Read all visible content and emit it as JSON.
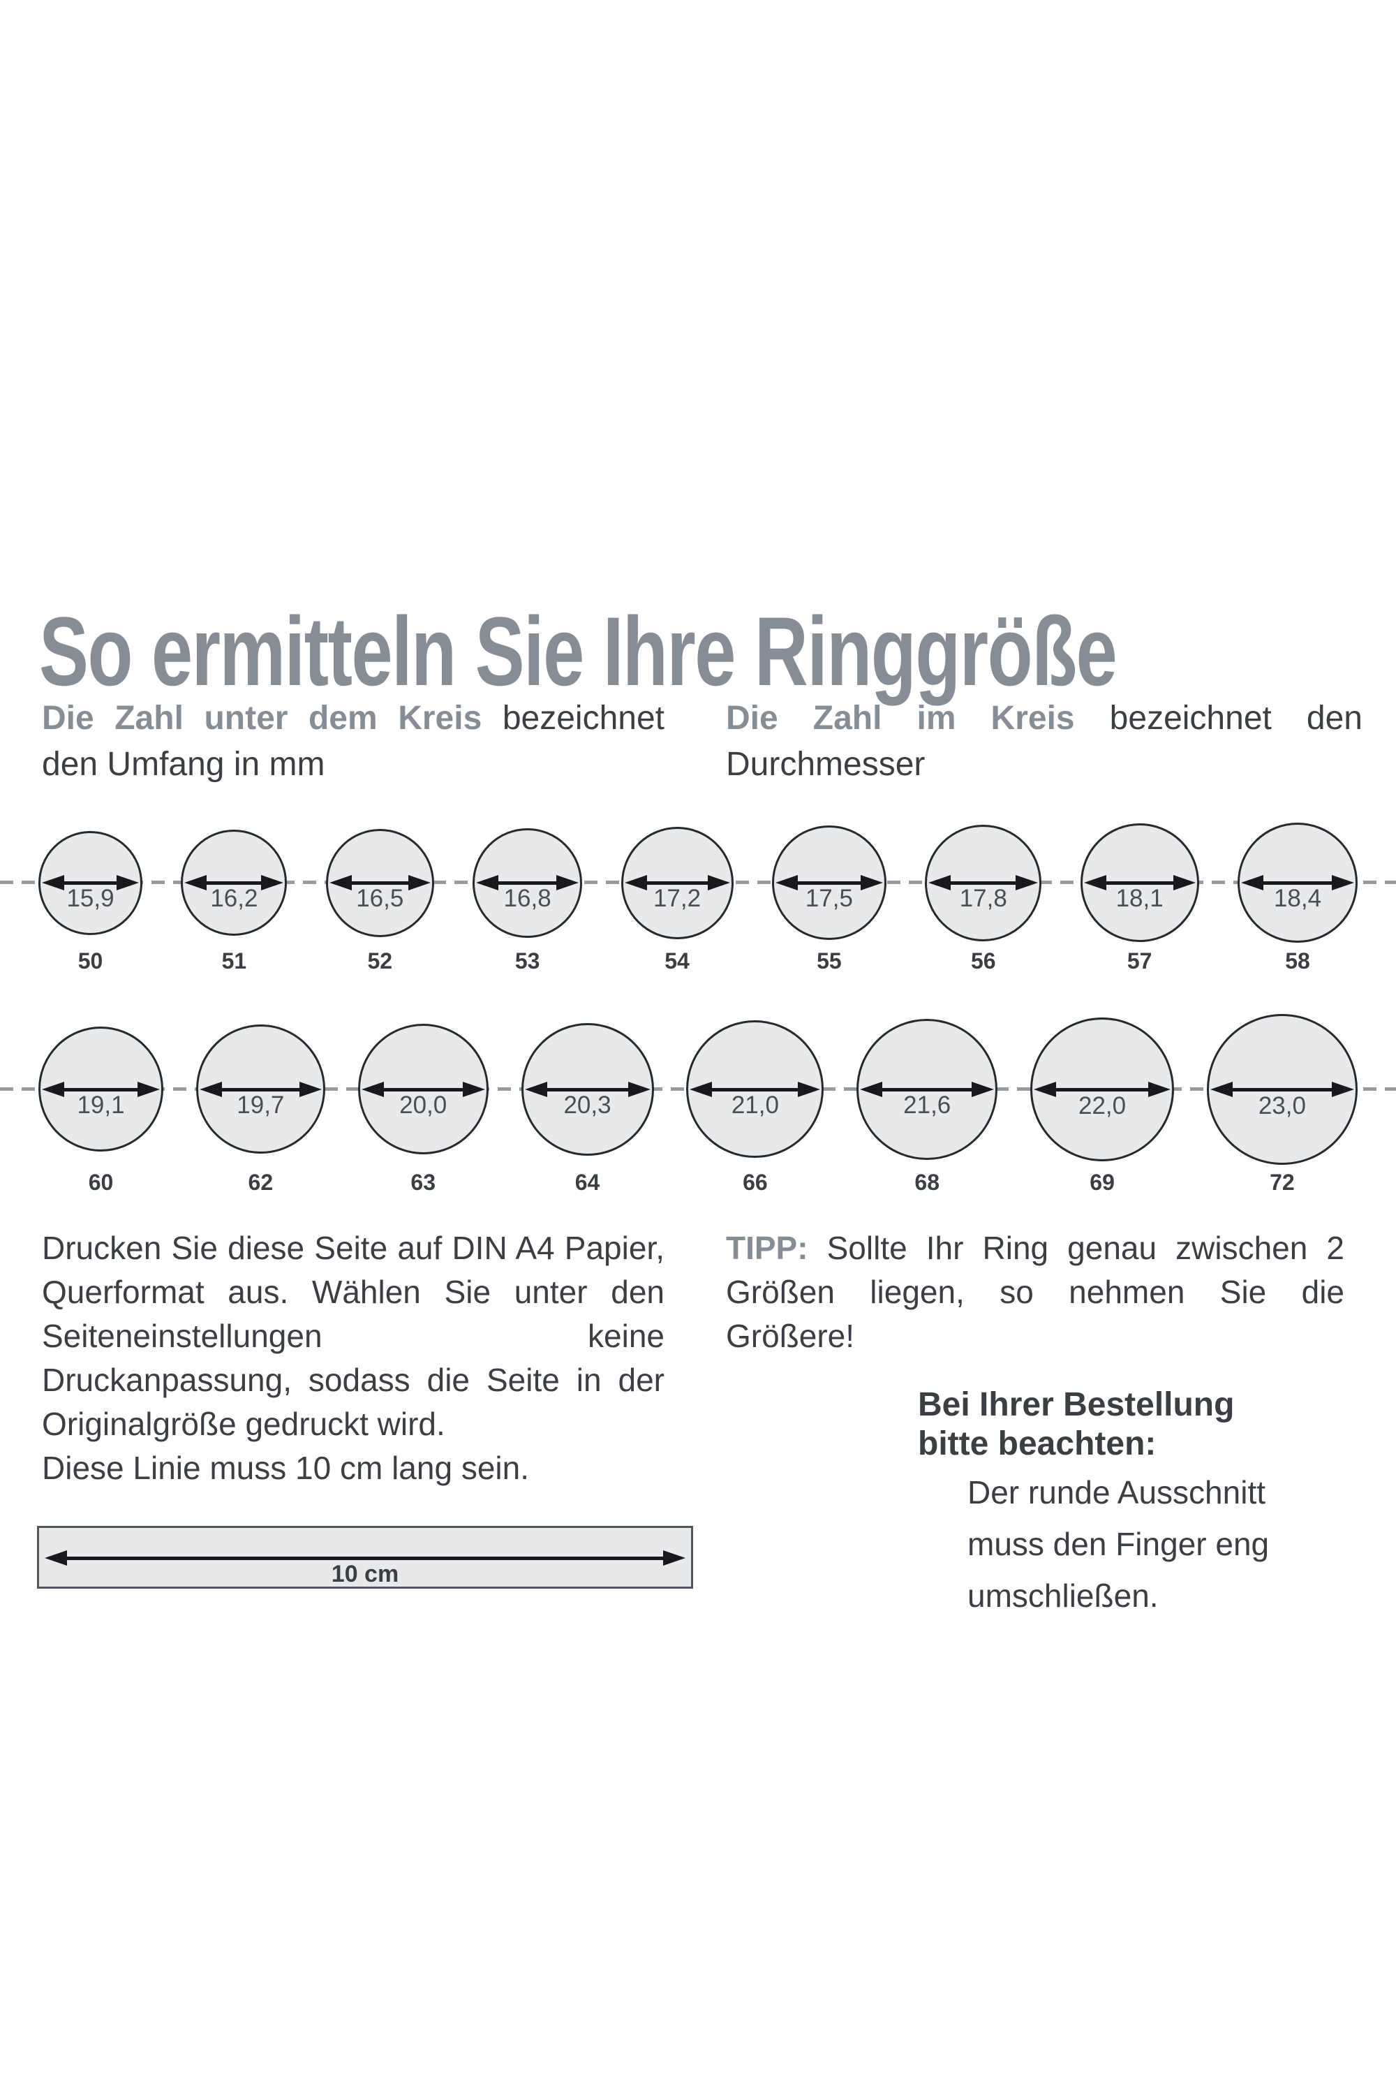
{
  "title": "So ermitteln Sie Ihre Ringgröße",
  "intro_left": {
    "bold": "Die Zahl unter dem Kreis",
    "rest": " bezeichnet den Umfang in mm"
  },
  "intro_right": {
    "bold": "Die Zahl im Kreis",
    "rest": " bezeichnet den Durchmesser"
  },
  "rows": [
    {
      "rings": [
        {
          "diameter_mm": "15,9",
          "size": "50"
        },
        {
          "diameter_mm": "16,2",
          "size": "51"
        },
        {
          "diameter_mm": "16,5",
          "size": "52"
        },
        {
          "diameter_mm": "16,8",
          "size": "53"
        },
        {
          "diameter_mm": "17,2",
          "size": "54"
        },
        {
          "diameter_mm": "17,5",
          "size": "55"
        },
        {
          "diameter_mm": "17,8",
          "size": "56"
        },
        {
          "diameter_mm": "18,1",
          "size": "57"
        },
        {
          "diameter_mm": "18,4",
          "size": "58"
        }
      ]
    },
    {
      "rings": [
        {
          "diameter_mm": "19,1",
          "size": "60"
        },
        {
          "diameter_mm": "19,7",
          "size": "62"
        },
        {
          "diameter_mm": "20,0",
          "size": "63"
        },
        {
          "diameter_mm": "20,3",
          "size": "64"
        },
        {
          "diameter_mm": "21,0",
          "size": "66"
        },
        {
          "diameter_mm": "21,6",
          "size": "68"
        },
        {
          "diameter_mm": "22,0",
          "size": "69"
        },
        {
          "diameter_mm": "23,0",
          "size": "72"
        }
      ]
    }
  ],
  "print_note": "Drucken Sie diese Seite auf DIN A4 Papier, Querformat aus. Wählen Sie unter den Seiteneinstellungen keine Druckanpassung, sodass die Seite in der Originalgröße gedruckt wird.",
  "line_note": "Diese Linie muss 10 cm lang sein.",
  "ruler_label": "10 cm",
  "tip": {
    "bold": "TIPP:",
    "rest": " Sollte Ihr Ring genau zwischen 2 Größen liegen, so nehmen Sie die Größere!"
  },
  "order_note": {
    "heading": "Bei Ihrer Bestellung bitte beachten:",
    "body": "Der runde Ausschnitt muss den Finger eng umschließen."
  },
  "colors": {
    "accent_gray": "#868d94",
    "text_dark": "#3b3e43",
    "circle_fill": "#e7e9eb",
    "circle_border": "#26292d",
    "dash_gray": "#989b9f",
    "arrow_black": "#17191c"
  }
}
